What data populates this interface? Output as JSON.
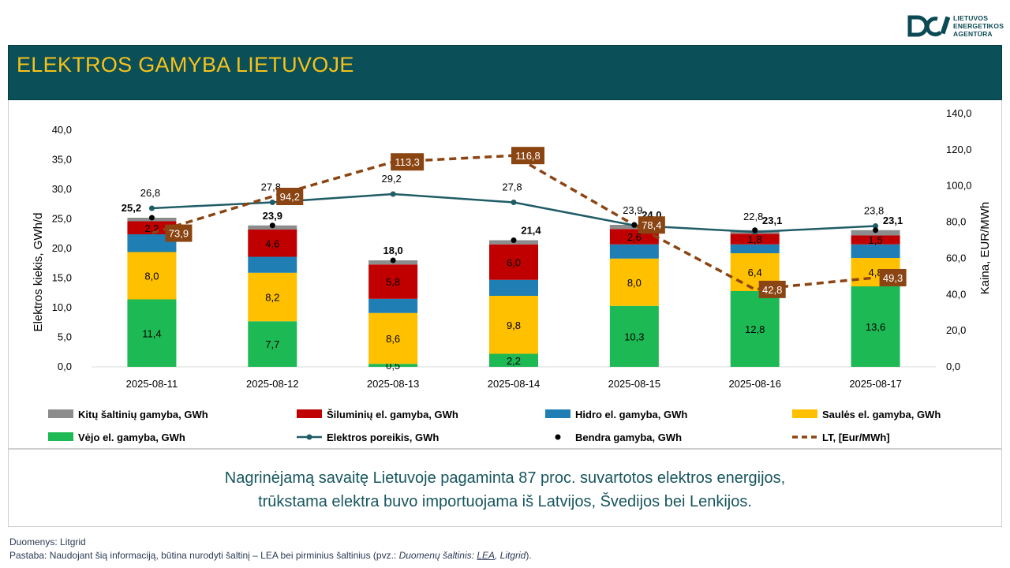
{
  "header": {
    "title": "ELEKTROS GAMYBA LIETUVOJE",
    "logo_lines": [
      "LIETUVOS",
      "ENERGETIKOS",
      "AGENTŪRA"
    ]
  },
  "chart_data": {
    "type": "bar",
    "categories": [
      "2025-08-11",
      "2025-08-12",
      "2025-08-13",
      "2025-08-14",
      "2025-08-15",
      "2025-08-16",
      "2025-08-17"
    ],
    "ylabel": "Elektros kiekis, GWh/d",
    "y2label": "Kaina, EUR/MWh",
    "ylim": [
      0,
      40
    ],
    "y2lim": [
      0,
      140
    ],
    "y_ticks": [
      "0,0",
      "5,0",
      "10,0",
      "15,0",
      "20,0",
      "25,0",
      "30,0",
      "35,0",
      "40,0"
    ],
    "y2_ticks": [
      "0,0",
      "20,0",
      "40,0",
      "60,0",
      "80,0",
      "100,0",
      "120,0",
      "140,0"
    ],
    "series": [
      {
        "name": "Vėjo el. gamyba, GWh",
        "kind": "bar",
        "color": "#1db954",
        "values": [
          11.4,
          7.7,
          0.5,
          2.2,
          10.3,
          12.8,
          13.6
        ],
        "labels": [
          "11,4",
          "7,7",
          "0,5",
          "2,2",
          "10,3",
          "12,8",
          "13,6"
        ]
      },
      {
        "name": "Saulės el. gamyba, GWh",
        "kind": "bar",
        "color": "#ffc000",
        "values": [
          8.0,
          8.2,
          8.6,
          9.8,
          8.0,
          6.4,
          4.8
        ],
        "labels": [
          "8,0",
          "8,2",
          "8,6",
          "9,8",
          "8,0",
          "6,4",
          "4,8"
        ]
      },
      {
        "name": "Hidro el. gamyba, GWh",
        "kind": "bar",
        "color": "#1f7fb4",
        "values": [
          3.0,
          2.7,
          2.4,
          2.7,
          2.4,
          1.5,
          2.3
        ],
        "labels": [
          "",
          "",
          "",
          "",
          "",
          "",
          ""
        ]
      },
      {
        "name": "Šiluminių el. gamyba, GWh",
        "kind": "bar",
        "color": "#c00000",
        "values": [
          2.2,
          4.6,
          5.8,
          6.0,
          2.6,
          1.8,
          1.5
        ],
        "labels": [
          "2,2",
          "4,6",
          "5,8",
          "6,0",
          "2,6",
          "1,8",
          "1,5"
        ]
      },
      {
        "name": "Kitų šaltinių gamyba,  GWh",
        "kind": "bar",
        "color": "#8c8c8c",
        "values": [
          0.6,
          0.7,
          0.7,
          0.7,
          0.7,
          0.6,
          0.9
        ],
        "labels": [
          "",
          "",
          "",
          "",
          "",
          "",
          ""
        ]
      }
    ],
    "total_series": {
      "name": "Bendra gamyba, GWh",
      "values": [
        25.2,
        23.9,
        18.0,
        21.4,
        24.0,
        23.1,
        23.1
      ],
      "labels": [
        "25,2",
        "23,9",
        "18,0",
        "21,4",
        "24,0",
        "23,1",
        "23,1"
      ]
    },
    "demand_series": {
      "name": "Elektros poreikis, GWh",
      "color": "#1f5c66",
      "values": [
        26.8,
        27.8,
        29.2,
        27.8,
        23.9,
        22.8,
        23.8
      ],
      "labels": [
        "26,8",
        "27,8",
        "29,2",
        "27,8",
        "23,9",
        "22,8",
        "23,8"
      ]
    },
    "price_series": {
      "name": "LT, [Eur/MWh]",
      "color": "#8b4513",
      "values": [
        73.9,
        94.2,
        113.3,
        116.8,
        78.4,
        42.8,
        49.3
      ],
      "labels": [
        "73,9",
        "94,2",
        "113,3",
        "116,8",
        "78,4",
        "42,8",
        "49,3"
      ]
    },
    "legend_order": [
      "Kitų šaltinių gamyba,  GWh",
      "Šiluminių el. gamyba, GWh",
      "Hidro el. gamyba, GWh",
      "Saulės el. gamyba, GWh",
      "Vėjo el. gamyba, GWh",
      "Elektros poreikis, GWh",
      "Bendra gamyba, GWh",
      "LT, [Eur/MWh]"
    ],
    "legend_position": "bottom"
  },
  "message": {
    "line1": "Nagrinėjamą savaitę Lietuvoje pagaminta 87 proc. suvartotos elektros energijos,",
    "line2": "trūkstama elektra buvo importuojama iš Latvijos, Švedijos bei Lenkijos."
  },
  "footer": {
    "source": "Duomenys: Litgrid",
    "note_prefix": "Pastaba: Naudojant šią informaciją, būtina nurodyti šaltinį – LEA bei pirminius šaltinius (pvz.: ",
    "note_italic": "Duomenų šaltinis: ",
    "note_link": "LEA",
    "note_italic2": ", Litgrid",
    "note_suffix": ")."
  },
  "colors": {
    "title_bg": "#0b4f58",
    "title_text": "#f7c21a",
    "message_text": "#17565f"
  }
}
